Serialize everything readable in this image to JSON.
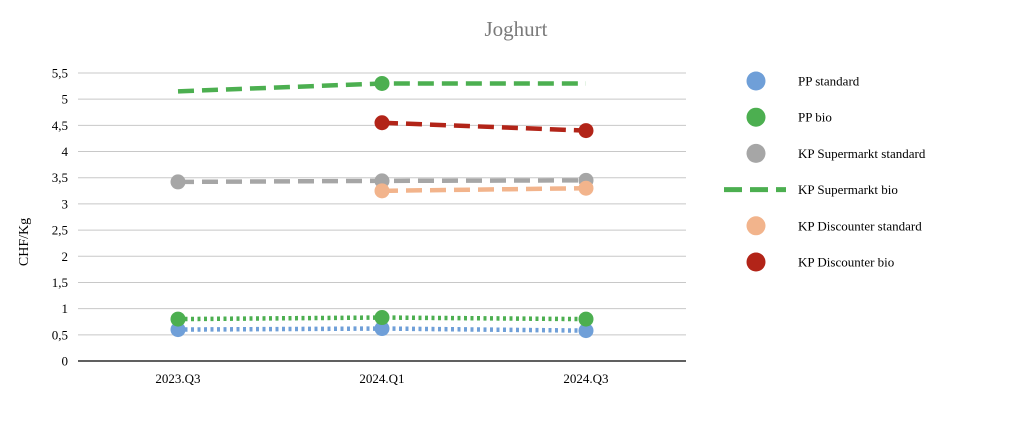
{
  "chart_data": {
    "type": "line",
    "title": "Joghurt",
    "xlabel": "",
    "ylabel": "CHF/Kg",
    "categories": [
      "2023.Q3",
      "2024.Q1",
      "2024.Q3"
    ],
    "ylim": [
      0,
      5.5
    ],
    "y_ticks": [
      "0",
      "0,5",
      "1",
      "1,5",
      "2",
      "2,5",
      "3",
      "3,5",
      "4",
      "4,5",
      "5",
      "5,5"
    ],
    "grid": true,
    "legend_position": "right",
    "series": [
      {
        "name": "PP standard",
        "values": [
          0.6,
          0.62,
          0.58
        ],
        "color": "#6f9fd8",
        "line_style": "dotted",
        "markers": true
      },
      {
        "name": "PP bio",
        "values": [
          0.8,
          0.83,
          0.8
        ],
        "color": "#4caf50",
        "line_style": "dotted",
        "markers": true
      },
      {
        "name": "KP Supermarkt standard",
        "values": [
          3.42,
          3.44,
          3.45
        ],
        "color": "#a6a6a6",
        "line_style": "dashed",
        "markers": true
      },
      {
        "name": "KP Supermarkt bio",
        "values": [
          5.15,
          5.3,
          5.3
        ],
        "color": "#4caf50",
        "line_style": "dashed",
        "markers": false,
        "marker_at": [
          1
        ]
      },
      {
        "name": "KP Discounter standard",
        "values": [
          null,
          3.25,
          3.3
        ],
        "color": "#f2b48c",
        "line_style": "dashed",
        "markers": true
      },
      {
        "name": "KP Discounter bio",
        "values": [
          null,
          4.55,
          4.4
        ],
        "color": "#b22418",
        "line_style": "dashed",
        "markers": true
      }
    ]
  }
}
